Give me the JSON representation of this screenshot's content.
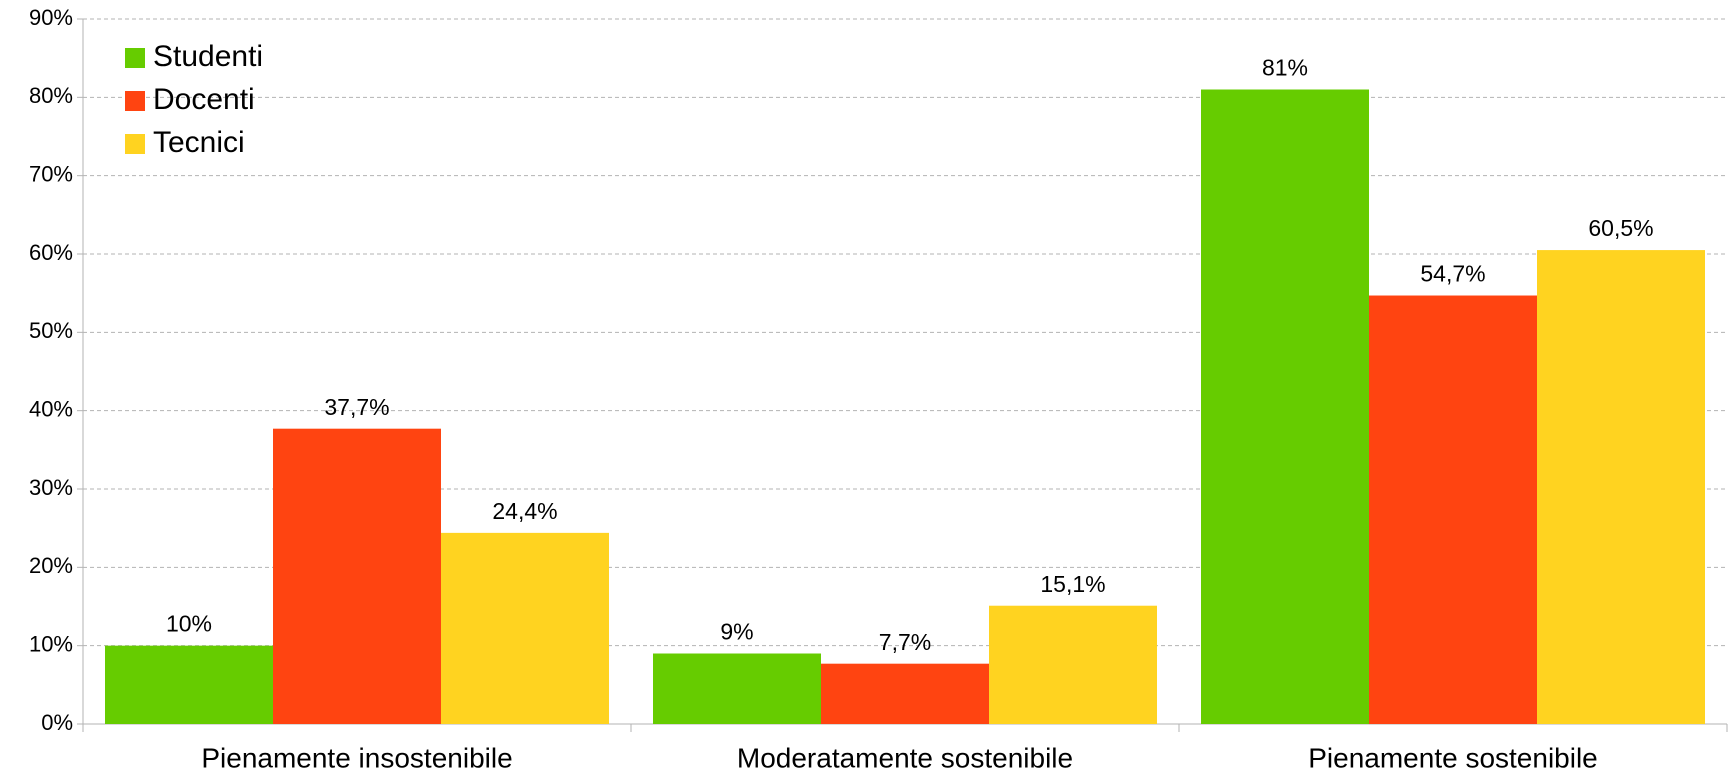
{
  "chart_data": {
    "type": "bar",
    "categories": [
      "Pienamente insostenibile",
      "Moderatamente sostenibile",
      "Pienamente sostenibile"
    ],
    "series": [
      {
        "name": "Studenti",
        "color": "#66cc00",
        "values": [
          10,
          9,
          81
        ],
        "value_labels": [
          "10%",
          "9%",
          "81%"
        ]
      },
      {
        "name": "Docenti",
        "color": "#ff4411",
        "values": [
          37.7,
          7.7,
          54.7
        ],
        "value_labels": [
          "37,7%",
          "7,7%",
          "54,7%"
        ]
      },
      {
        "name": "Tecnici",
        "color": "#ffd320",
        "values": [
          24.4,
          15.1,
          60.5
        ],
        "value_labels": [
          "24,4%",
          "15,1%",
          "60,5%"
        ]
      }
    ],
    "ylim": [
      0,
      90
    ],
    "yticks": [
      {
        "value": 0,
        "label": "0%"
      },
      {
        "value": 10,
        "label": "10%"
      },
      {
        "value": 20,
        "label": "20%"
      },
      {
        "value": 30,
        "label": "30%"
      },
      {
        "value": 40,
        "label": "40%"
      },
      {
        "value": 50,
        "label": "50%"
      },
      {
        "value": 60,
        "label": "60%"
      },
      {
        "value": 70,
        "label": "70%"
      },
      {
        "value": 80,
        "label": "80%"
      },
      {
        "value": 90,
        "label": "90%"
      }
    ],
    "grid": true,
    "legend": "top-left"
  }
}
